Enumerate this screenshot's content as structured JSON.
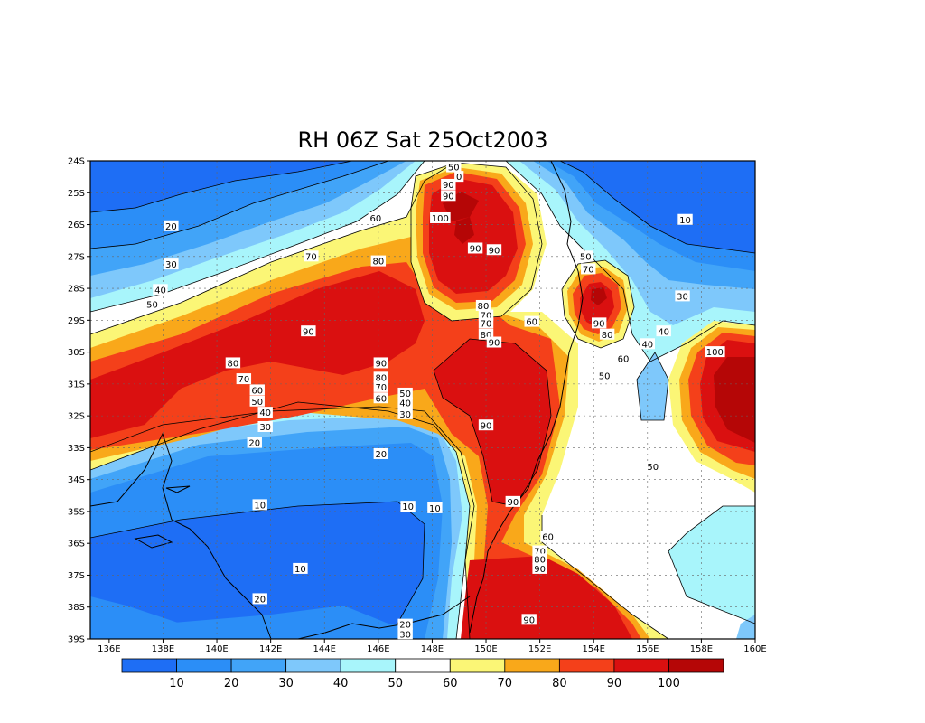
{
  "chart_data": {
    "type": "heatmap",
    "title": "RH 06Z Sat 25Oct2003",
    "x_ticks": [
      "136E",
      "138E",
      "140E",
      "142E",
      "144E",
      "146E",
      "148E",
      "150E",
      "152E",
      "154E",
      "156E",
      "158E",
      "160E"
    ],
    "y_ticks": [
      "24S",
      "25S",
      "26S",
      "27S",
      "28S",
      "29S",
      "30S",
      "31S",
      "32S",
      "33S",
      "34S",
      "35S",
      "36S",
      "37S",
      "38S",
      "39S"
    ],
    "xlim": [
      135.3,
      160
    ],
    "ylim": [
      -39,
      -24
    ],
    "grid": true,
    "colorbar": {
      "levels": [
        10,
        20,
        30,
        40,
        50,
        60,
        70,
        80,
        90,
        100
      ],
      "labels": [
        "10",
        "20",
        "30",
        "40",
        "50",
        "60",
        "70",
        "80",
        "90",
        "100"
      ],
      "colors": [
        "#1e6ef5",
        "#2b8ef7",
        "#41a4f8",
        "#7ec8fb",
        "#a8f5fb",
        "#ffffff",
        "#fbf676",
        "#f9a81a",
        "#f4401a",
        "#da1010",
        "#b50606"
      ]
    },
    "regions": [
      {
        "rh": 10,
        "center": [
          142.5,
          -35.7
        ]
      },
      {
        "rh": 10,
        "center": [
          156.5,
          -26.0
        ]
      },
      {
        "rh": 20,
        "center": [
          138.3,
          -26.0
        ]
      },
      {
        "rh": 90,
        "center": [
          142.0,
          -29.5
        ]
      },
      {
        "rh": 100,
        "center": [
          149.2,
          -26.3
        ]
      },
      {
        "rh": 90,
        "center": [
          150.5,
          -31.8
        ]
      },
      {
        "rh": 90,
        "center": [
          154.2,
          -28.7
        ]
      },
      {
        "rh": 100,
        "center": [
          159.0,
          -31.0
        ]
      },
      {
        "rh": 90,
        "center": [
          152.2,
          -38.0
        ]
      }
    ],
    "contour_labels": [
      {
        "text": "20",
        "lon": 138.3,
        "lat": -26.05
      },
      {
        "text": "30",
        "lon": 138.3,
        "lat": -27.25
      },
      {
        "text": "40",
        "lon": 137.9,
        "lat": -28.05
      },
      {
        "text": "50",
        "lon": 137.6,
        "lat": -28.5
      },
      {
        "text": "70",
        "lon": 143.5,
        "lat": -27.0
      },
      {
        "text": "60",
        "lon": 145.9,
        "lat": -25.8
      },
      {
        "text": "80",
        "lon": 146.0,
        "lat": -27.15
      },
      {
        "text": "90",
        "lon": 143.4,
        "lat": -29.35
      },
      {
        "text": "80",
        "lon": 140.6,
        "lat": -30.35
      },
      {
        "text": "70",
        "lon": 141.0,
        "lat": -30.85
      },
      {
        "text": "60",
        "lon": 141.5,
        "lat": -31.2
      },
      {
        "text": "50",
        "lon": 141.5,
        "lat": -31.55
      },
      {
        "text": "40",
        "lon": 141.8,
        "lat": -31.9
      },
      {
        "text": "30",
        "lon": 141.8,
        "lat": -32.35
      },
      {
        "text": "20",
        "lon": 141.4,
        "lat": -32.85
      },
      {
        "text": "90",
        "lon": 146.1,
        "lat": -30.35
      },
      {
        "text": "80",
        "lon": 146.1,
        "lat": -30.8
      },
      {
        "text": "70",
        "lon": 146.1,
        "lat": -31.1
      },
      {
        "text": "60",
        "lon": 146.1,
        "lat": -31.45
      },
      {
        "text": "50",
        "lon": 147.0,
        "lat": -31.3
      },
      {
        "text": "40",
        "lon": 147.0,
        "lat": -31.6
      },
      {
        "text": "30",
        "lon": 147.0,
        "lat": -31.95
      },
      {
        "text": "20",
        "lon": 146.1,
        "lat": -33.2
      },
      {
        "text": "10",
        "lon": 141.6,
        "lat": -34.8
      },
      {
        "text": "10",
        "lon": 147.1,
        "lat": -34.85
      },
      {
        "text": "10",
        "lon": 148.1,
        "lat": -34.9
      },
      {
        "text": "10",
        "lon": 143.1,
        "lat": -36.8
      },
      {
        "text": "20",
        "lon": 141.6,
        "lat": -37.75
      },
      {
        "text": "20",
        "lon": 147.0,
        "lat": -38.55
      },
      {
        "text": "30",
        "lon": 147.0,
        "lat": -38.85
      },
      {
        "text": "50",
        "lon": 148.8,
        "lat": -24.2
      },
      {
        "text": "0",
        "lon": 149.0,
        "lat": -24.5
      },
      {
        "text": "90",
        "lon": 148.6,
        "lat": -24.75
      },
      {
        "text": "90",
        "lon": 148.6,
        "lat": -25.1
      },
      {
        "text": "100",
        "lon": 148.3,
        "lat": -25.8
      },
      {
        "text": "90",
        "lon": 149.6,
        "lat": -26.75
      },
      {
        "text": "90",
        "lon": 150.3,
        "lat": -26.8
      },
      {
        "text": "80",
        "lon": 149.9,
        "lat": -28.55
      },
      {
        "text": "70",
        "lon": 150.0,
        "lat": -28.85
      },
      {
        "text": "70",
        "lon": 150.0,
        "lat": -29.1
      },
      {
        "text": "80",
        "lon": 150.0,
        "lat": -29.45
      },
      {
        "text": "90",
        "lon": 150.3,
        "lat": -29.7
      },
      {
        "text": "60",
        "lon": 151.7,
        "lat": -29.05
      },
      {
        "text": "90",
        "lon": 150.0,
        "lat": -32.3
      },
      {
        "text": "90",
        "lon": 151.0,
        "lat": -34.7
      },
      {
        "text": "60",
        "lon": 152.3,
        "lat": -35.8
      },
      {
        "text": "70",
        "lon": 152.0,
        "lat": -36.25
      },
      {
        "text": "80",
        "lon": 152.0,
        "lat": -36.5
      },
      {
        "text": "90",
        "lon": 152.0,
        "lat": -36.8
      },
      {
        "text": "90",
        "lon": 151.6,
        "lat": -38.4
      },
      {
        "text": "50",
        "lon": 153.7,
        "lat": -27.0
      },
      {
        "text": "70",
        "lon": 153.8,
        "lat": -27.4
      },
      {
        "text": "90",
        "lon": 154.2,
        "lat": -29.1
      },
      {
        "text": "80",
        "lon": 154.5,
        "lat": -29.45
      },
      {
        "text": "60",
        "lon": 155.1,
        "lat": -30.2
      },
      {
        "text": "50",
        "lon": 154.4,
        "lat": -30.75
      },
      {
        "text": "40",
        "lon": 156.0,
        "lat": -29.75
      },
      {
        "text": "40",
        "lon": 156.6,
        "lat": -29.35
      },
      {
        "text": "30",
        "lon": 157.3,
        "lat": -28.25
      },
      {
        "text": "10",
        "lon": 157.4,
        "lat": -25.85
      },
      {
        "text": "100",
        "lon": 158.5,
        "lat": -30.0
      },
      {
        "text": "50",
        "lon": 156.2,
        "lat": -33.6
      }
    ]
  }
}
